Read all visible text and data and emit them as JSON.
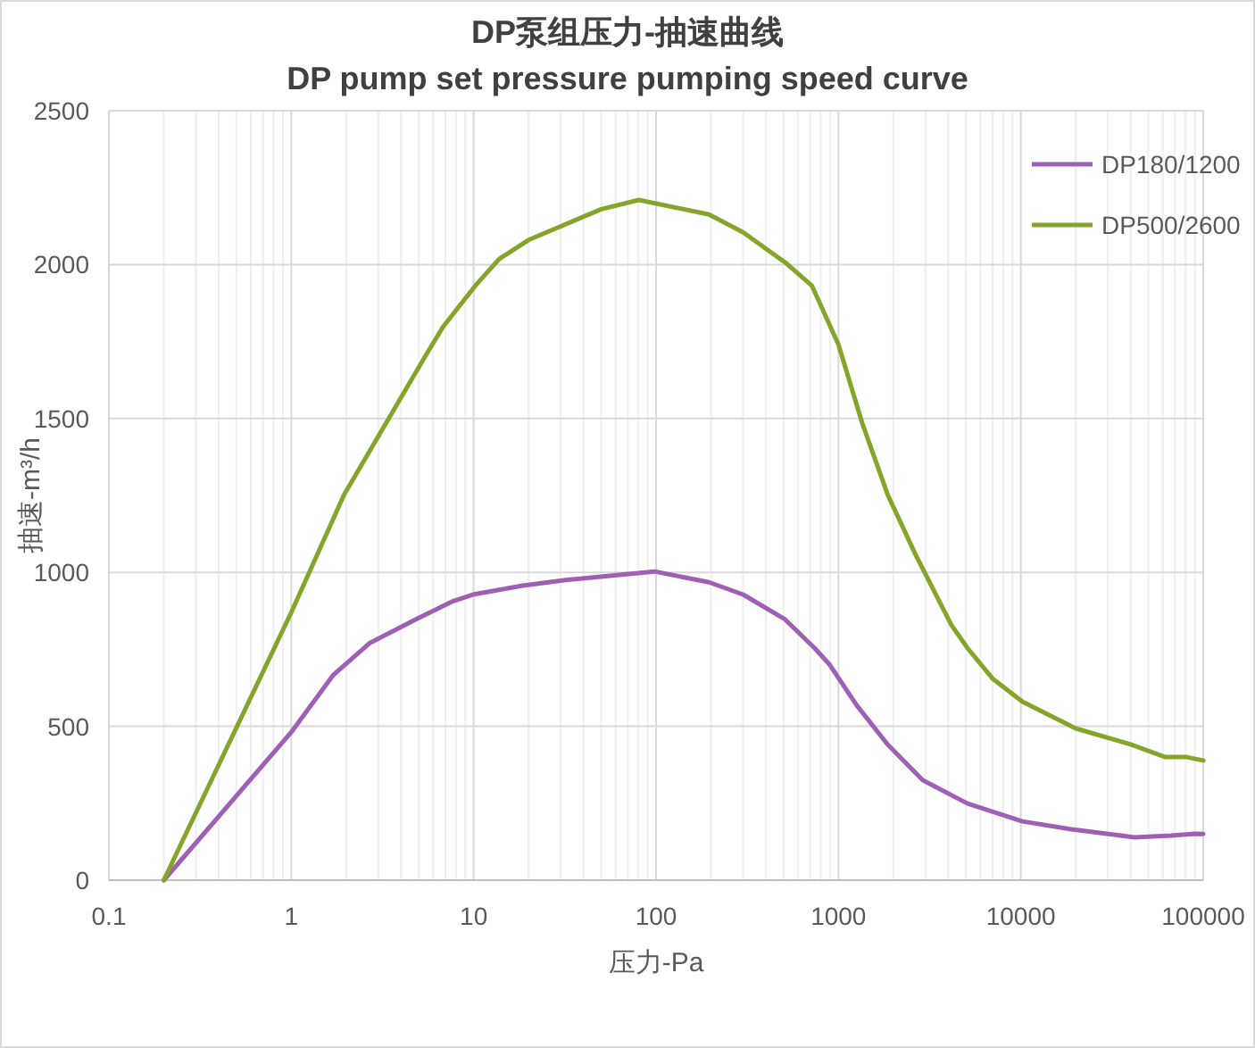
{
  "chart_data": {
    "type": "line",
    "title": "DP泵组压力-抽速曲线",
    "subtitle": "DP pump set pressure pumping speed curve",
    "xlabel": "压力-Pa",
    "ylabel": "抽速-m³/h",
    "log": "x",
    "grid": true,
    "legend": "top right",
    "line_style": "solid",
    "marker": "none",
    "xlim": [
      0.1,
      100000
    ],
    "xticks": [
      0.1,
      1,
      10,
      100,
      1000,
      10000,
      100000
    ],
    "ylim": [
      0,
      2500
    ],
    "yticks": [
      0,
      500,
      1000,
      1500,
      2000,
      2500
    ],
    "series": [
      {
        "name": "DP180/1200",
        "color": "#9e5fb5",
        "x": [
          0.2,
          1,
          1.7,
          2.7,
          4.8,
          7.6,
          9.9,
          18.6,
          32,
          98,
          195,
          300,
          510,
          740,
          890,
          1260,
          1860,
          2900,
          5100,
          10200,
          18600,
          42000,
          67000,
          90000,
          100000
        ],
        "values": [
          0,
          481,
          667,
          771,
          847,
          905,
          928,
          957,
          975,
          1003,
          968,
          928,
          847,
          754,
          702,
          568,
          441,
          325,
          249,
          191,
          166,
          139,
          145,
          151,
          150
        ]
      },
      {
        "name": "DP500/2600",
        "color": "#84a52a",
        "x": [
          0.2,
          1,
          1.95,
          5.4,
          6.8,
          10.2,
          13.8,
          20,
          50,
          80.5,
          195,
          300,
          510,
          716,
          1000,
          1350,
          1860,
          2630,
          4160,
          5100,
          7000,
          10200,
          20000,
          40000,
          62000,
          81000,
          100000
        ],
        "values": [
          0,
          870,
          1253,
          1700,
          1798,
          1931,
          2018,
          2080,
          2180,
          2210,
          2163,
          2105,
          2007,
          1931,
          1740,
          1485,
          1253,
          1061,
          829,
          754,
          655,
          580,
          493,
          441,
          400,
          400,
          389
        ]
      }
    ]
  }
}
